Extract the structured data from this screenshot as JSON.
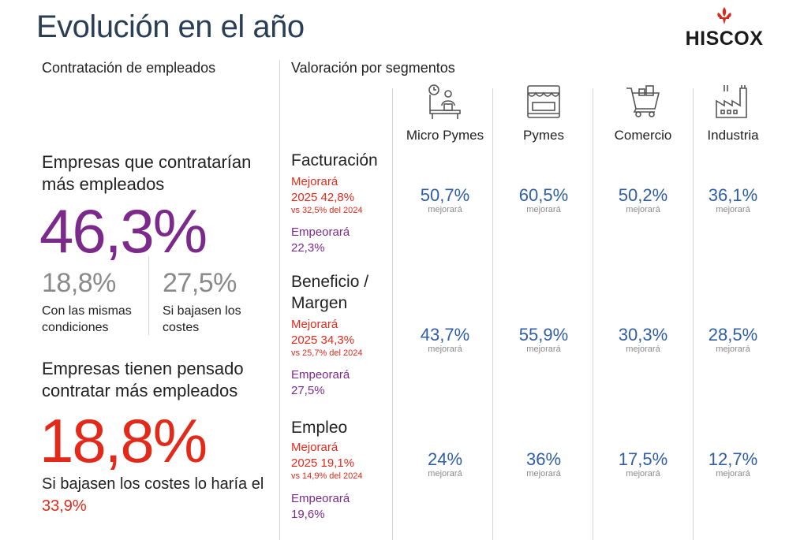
{
  "title": "Evolución en el año",
  "logo": {
    "text": "HISCOX"
  },
  "left": {
    "section_title": "Contratación de empleados",
    "hire_label": "Empresas que contratarían más empleados",
    "hire_value": "46,3%",
    "same_conditions_value": "18,8%",
    "same_conditions_label": "Con las mismas condiciones",
    "lower_costs_value": "27,5%",
    "lower_costs_label": "Si bajasen los costes",
    "plan_label": "Empresas tienen pensado contratar más empleados",
    "plan_value": "18,8%",
    "plan_note_prefix": "Si bajasen los costes lo haría el ",
    "plan_note_value": "33,9%"
  },
  "right": {
    "section_title": "Valoración por segmentos",
    "segments": [
      {
        "name": "Micro Pymes",
        "icon": "micro-pymes-icon"
      },
      {
        "name": "Pymes",
        "icon": "store-icon"
      },
      {
        "name": "Comercio",
        "icon": "shopping-cart-icon"
      },
      {
        "name": "Industria",
        "icon": "factory-icon"
      }
    ],
    "rows": [
      {
        "label": "Facturación",
        "better_label": "Mejorará",
        "better_value": "2025 42,8%",
        "better_compare": "vs 32,5% del 2024",
        "worse_label": "Empeorará",
        "worse_value": "22,3%",
        "values": [
          "50,7%",
          "60,5%",
          "50,2%",
          "36,1%"
        ],
        "value_sub": "mejorará"
      },
      {
        "label": "Beneficio / Margen",
        "better_label": "Mejorará",
        "better_value": "2025 34,3%",
        "better_compare": "vs 25,7% del 2024",
        "worse_label": "Empeorará",
        "worse_value": "27,5%",
        "values": [
          "43,7%",
          "55,9%",
          "30,3%",
          "28,5%"
        ],
        "value_sub": "mejorará"
      },
      {
        "label": "Empleo",
        "better_label": "Mejorará",
        "better_value": "2025 19,1%",
        "better_compare": "vs 14,9% del 2024",
        "worse_label": "Empeorará",
        "worse_value": "19,6%",
        "values": [
          "24%",
          "36%",
          "17,5%",
          "12,7%"
        ],
        "value_sub": "mejorará"
      }
    ]
  },
  "colors": {
    "purple": "#7b2a8b",
    "red": "#e22a1b",
    "blue": "#2f5ea4",
    "title": "#2a3f55",
    "grey": "#8a8a8a"
  }
}
